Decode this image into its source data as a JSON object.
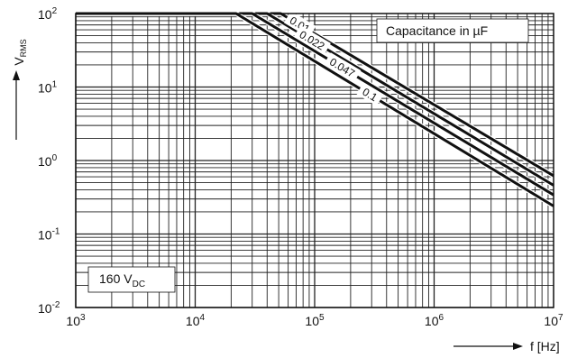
{
  "chart_data": {
    "type": "line",
    "title": "",
    "x_scale": "log",
    "y_scale": "log",
    "xlim": [
      1000,
      10000000
    ],
    "ylim": [
      0.01,
      100
    ],
    "x_ticks": [
      {
        "base": "10",
        "exp": "3"
      },
      {
        "base": "10",
        "exp": "4"
      },
      {
        "base": "10",
        "exp": "5"
      },
      {
        "base": "10",
        "exp": "6"
      },
      {
        "base": "10",
        "exp": "7"
      }
    ],
    "y_ticks": [
      {
        "base": "10",
        "exp": "-2"
      },
      {
        "base": "10",
        "exp": "-1"
      },
      {
        "base": "10",
        "exp": "0"
      },
      {
        "base": "10",
        "exp": "1"
      },
      {
        "base": "10",
        "exp": "2"
      }
    ],
    "xlabel": "f [Hz]",
    "ylabel": {
      "main": "V",
      "sub": "RMS"
    },
    "grid": true,
    "legend_box": "Capacitance in µF",
    "voltage_box": {
      "main": "160 V",
      "sub": "DC"
    },
    "series": [
      {
        "name": "0.01",
        "x": [
          1000,
          52000,
          10000000
        ],
        "y": [
          100,
          100,
          0.62
        ]
      },
      {
        "name": "0.022",
        "x": [
          1000,
          40000,
          10000000
        ],
        "y": [
          100,
          100,
          0.46
        ]
      },
      {
        "name": "0.047",
        "x": [
          1000,
          30000,
          10000000
        ],
        "y": [
          100,
          100,
          0.34
        ]
      },
      {
        "name": "0.1",
        "x": [
          1000,
          22000,
          10000000
        ],
        "y": [
          100,
          100,
          0.24
        ]
      }
    ]
  }
}
